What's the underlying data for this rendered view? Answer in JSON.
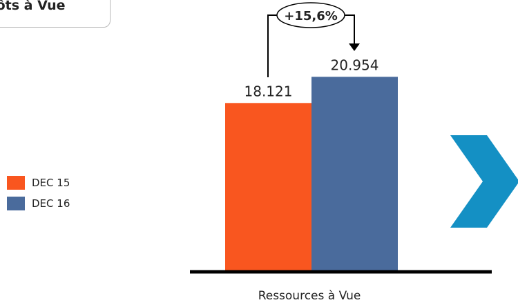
{
  "header": {
    "title": "pôts à Vue"
  },
  "chart_data": {
    "type": "bar",
    "categories": [
      "Ressources à Vue"
    ],
    "series": [
      {
        "name": "DEC 15",
        "values": [
          18121
        ],
        "label": "18.121",
        "color": "#f9561f"
      },
      {
        "name": "DEC 16",
        "values": [
          20954
        ],
        "label": "20.954",
        "color": "#4a6b9c"
      }
    ],
    "xlabel": "Ressources à Vue",
    "ylim": [
      0,
      28000
    ],
    "growth_label": "+15,6%",
    "legend_position": "left"
  },
  "decor": {
    "arrow_icon": "chevron-right-icon",
    "arrow_color": "#1490c4"
  }
}
